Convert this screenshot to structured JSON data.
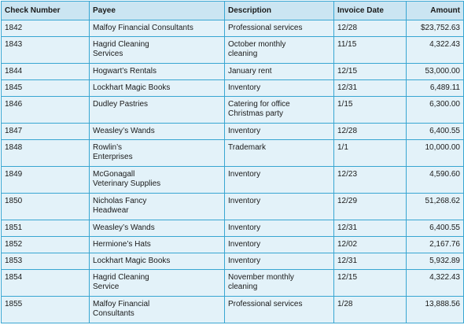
{
  "table": {
    "headers": {
      "check": "Check Number",
      "payee": "Payee",
      "description": "Description",
      "date": "Invoice Date",
      "amount": "Amount"
    },
    "rows": [
      {
        "check": "1842",
        "payee": "Malfoy Financial Consultants",
        "description": "Professional services",
        "date": "12/28",
        "amount": "$23,752.63"
      },
      {
        "check": "1843",
        "payee": "Hagrid Cleaning\nServices",
        "description": "October monthly\ncleaning",
        "date": "11/15",
        "amount": "4,322.43"
      },
      {
        "check": "1844",
        "payee": "Hogwart’s Rentals",
        "description": "January rent",
        "date": "12/15",
        "amount": "53,000.00"
      },
      {
        "check": "1845",
        "payee": "Lockhart Magic Books",
        "description": "Inventory",
        "date": "12/31",
        "amount": "6,489.11"
      },
      {
        "check": "1846",
        "payee": "Dudley Pastries",
        "description": "Catering for office\nChristmas party",
        "date": "1/15",
        "amount": "6,300.00"
      },
      {
        "check": "1847",
        "payee": "Weasley’s Wands",
        "description": "Inventory",
        "date": "12/28",
        "amount": "6,400.55"
      },
      {
        "check": "1848",
        "payee": "Rowlin’s\nEnterprises",
        "description": "Trademark",
        "date": "1/1",
        "amount": "10,000.00"
      },
      {
        "check": "1849",
        "payee": "McGonagall\nVeterinary Supplies",
        "description": "Inventory",
        "date": "12/23",
        "amount": "4,590.60"
      },
      {
        "check": "1850",
        "payee": "Nicholas Fancy\nHeadwear",
        "description": "Inventory",
        "date": "12/29",
        "amount": "51,268.62"
      },
      {
        "check": "1851",
        "payee": "Weasley’s Wands",
        "description": "Inventory",
        "date": "12/31",
        "amount": "6,400.55"
      },
      {
        "check": "1852",
        "payee": "Hermione’s Hats",
        "description": "Inventory",
        "date": "12/02",
        "amount": "2,167.76"
      },
      {
        "check": "1853",
        "payee": "Lockhart Magic Books",
        "description": "Inventory",
        "date": "12/31",
        "amount": "5,932.89"
      },
      {
        "check": "1854",
        "payee": "Hagrid Cleaning\nService",
        "description": "November monthly\ncleaning",
        "date": "12/15",
        "amount": "4,322.43"
      },
      {
        "check": "1855",
        "payee": "Malfoy Financial\nConsultants",
        "description": "Professional services",
        "date": "1/28",
        "amount": "13,888.56"
      }
    ]
  }
}
